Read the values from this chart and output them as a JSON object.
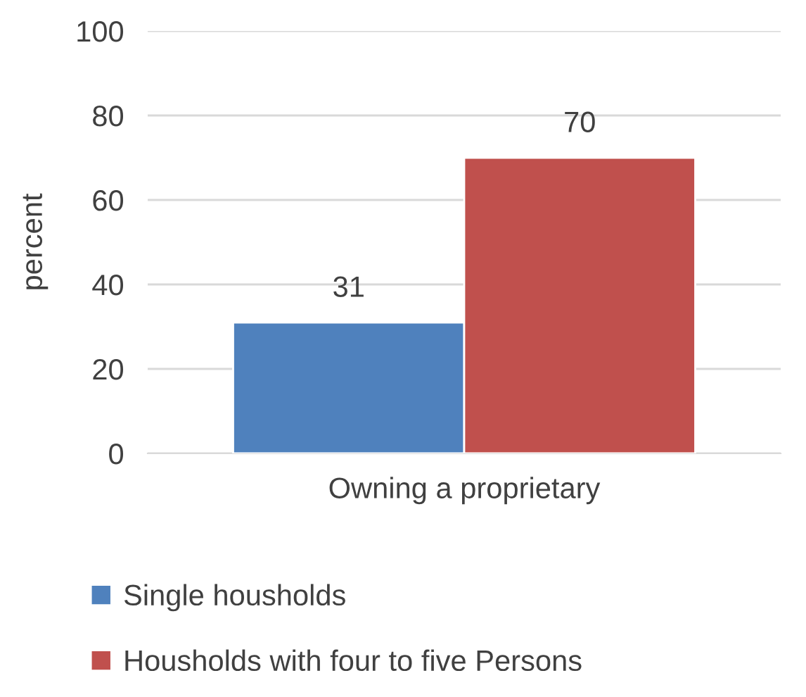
{
  "chart_data": {
    "type": "bar",
    "ylabel": "percent",
    "categories": [
      "Owning a proprietary"
    ],
    "series": [
      {
        "name": "Single housholds",
        "color": "#4f81bd",
        "values": [
          31
        ]
      },
      {
        "name": "Housholds with four to five Persons",
        "color": "#c0504d",
        "values": [
          70
        ]
      }
    ],
    "ylim": [
      0,
      100
    ],
    "yticks": [
      0,
      20,
      40,
      60,
      80,
      100
    ],
    "grid": "y",
    "legend": "bottom",
    "data_labels": true
  }
}
